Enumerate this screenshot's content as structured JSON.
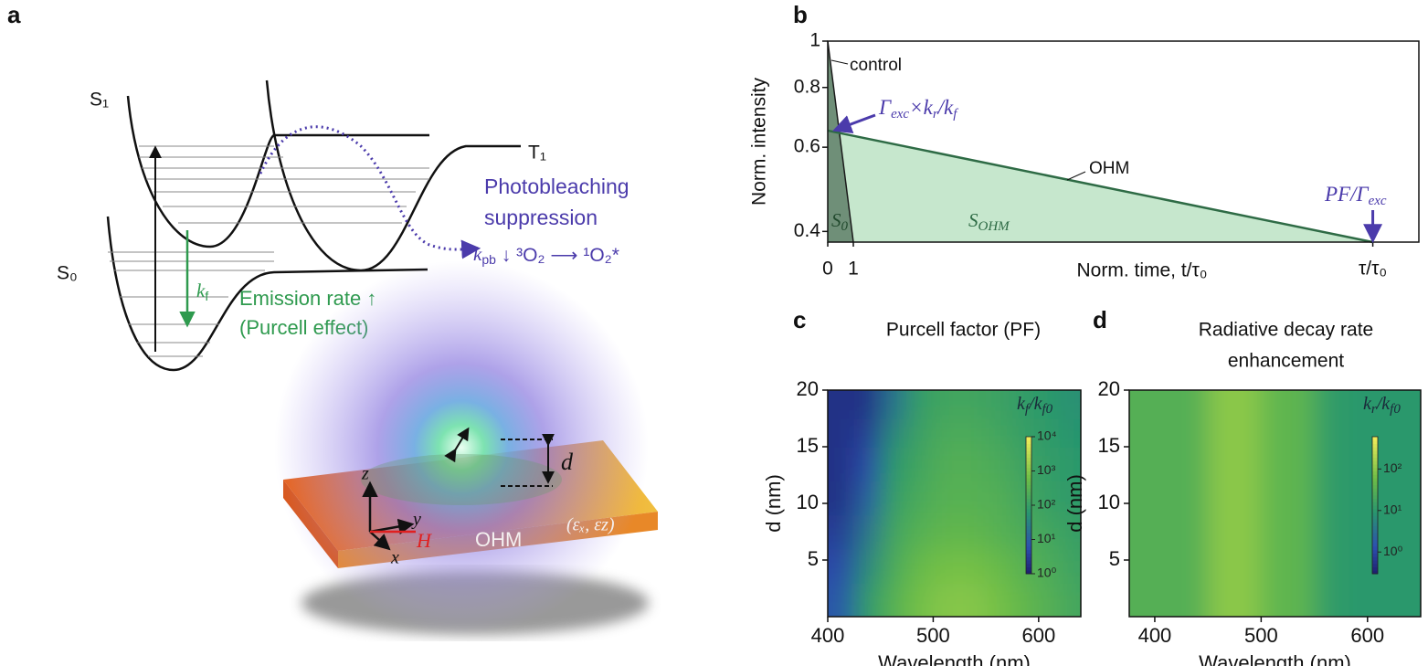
{
  "diagram": {
    "panel_label": "a",
    "s1": "S₁",
    "t1": "T₁",
    "s0": "S₀",
    "bleach_line1": "Photobleaching",
    "bleach_line2": "suppression",
    "kpb_parts": [
      "k",
      "pb",
      " ↓  ³O₂ ⟶ ¹O₂*"
    ],
    "kf_parts": [
      "k",
      "f"
    ],
    "emission_line1": "Emission rate ↑",
    "emission_line2": "(Purcell effect)",
    "d": "d",
    "z": "z",
    "y": "y",
    "x": "x",
    "h": "H",
    "ohm": "OHM",
    "eps": "(εₓ, εz)"
  },
  "chart_data": [
    {
      "type": "line",
      "panel_label": "b",
      "ylabel": "Norm. intensity",
      "xlabel": "Norm. time, t/τ₀",
      "log_y": true,
      "xlim": [
        0,
        23.1
      ],
      "xticks": [
        0,
        1,
        {
          "value": 21.3,
          "label": "τ/τ₀"
        }
      ],
      "ylim": [
        0.38,
        1
      ],
      "yticks": [
        0.4,
        0.6,
        0.8,
        1
      ],
      "series": [
        {
          "name": "control",
          "color": "#1a1a1a",
          "fill": "#6f8f78",
          "x": [
            0,
            1
          ],
          "values": [
            1,
            0.38
          ],
          "area_label": [
            "S",
            "0"
          ]
        },
        {
          "name": "OHM",
          "color": "#2e6b45",
          "fill": "#c6e7cd",
          "x": [
            0,
            21.3
          ],
          "values": [
            0.65,
            0.38
          ],
          "area_label": [
            "S",
            "OHM"
          ]
        }
      ],
      "annotations": [
        {
          "parts": [
            "Γ",
            "exc",
            "×k",
            "r",
            "/k",
            "f"
          ]
        },
        {
          "parts": [
            "PF/Γ",
            "exc"
          ]
        }
      ]
    },
    {
      "type": "heatmap",
      "panel_label": "c",
      "title": "Purcell factor (PF)",
      "xlabel": "Wavelength (nm)",
      "ylabel": "d (nm)",
      "xlim": [
        400,
        640
      ],
      "xticks": [
        400,
        500,
        600
      ],
      "ylim": [
        0,
        20
      ],
      "yticks": [
        5,
        10,
        15,
        20
      ],
      "colorbar_label": [
        "k",
        "f",
        "/k",
        "f0"
      ],
      "clim": [
        1,
        10000
      ],
      "cticks": [
        {
          "value": 1,
          "label": "10⁰"
        },
        {
          "value": 10,
          "label": "10¹"
        },
        {
          "value": 100,
          "label": "10²"
        },
        {
          "value": 1000,
          "label": "10³"
        },
        {
          "value": 10000,
          "label": "10⁴"
        }
      ],
      "xbins": [
        400,
        425,
        450,
        475,
        500,
        525,
        550,
        575,
        600,
        625,
        640
      ],
      "ybins": [
        0,
        3,
        6,
        9,
        12,
        15,
        17.5,
        20
      ],
      "z": [
        [
          8,
          80,
          300,
          700,
          1000,
          1000,
          700,
          400,
          250,
          150
        ],
        [
          5,
          40,
          200,
          500,
          700,
          700,
          500,
          300,
          200,
          120
        ],
        [
          3,
          20,
          150,
          300,
          400,
          400,
          300,
          200,
          150,
          100
        ],
        [
          2,
          10,
          100,
          200,
          300,
          300,
          250,
          150,
          100,
          80
        ],
        [
          2,
          5,
          70,
          150,
          250,
          250,
          200,
          120,
          90,
          70
        ],
        [
          2,
          3,
          40,
          120,
          200,
          200,
          150,
          100,
          80,
          60
        ],
        [
          2,
          2,
          20,
          100,
          150,
          150,
          120,
          90,
          70,
          50
        ]
      ]
    },
    {
      "type": "heatmap",
      "panel_label": "d",
      "title": [
        "Radiative decay rate",
        "enhancement"
      ],
      "xlabel": "Wavelength (nm)",
      "ylabel": "d (nm)",
      "xlim": [
        376,
        650
      ],
      "xticks": [
        400,
        500,
        600
      ],
      "ylim": [
        0,
        20
      ],
      "yticks": [
        5,
        10,
        15,
        20
      ],
      "colorbar_label": [
        "k",
        "r",
        "/k",
        "f0"
      ],
      "clim": [
        0.3,
        600
      ],
      "cticks": [
        {
          "value": 1,
          "label": "10⁰"
        },
        {
          "value": 10,
          "label": "10¹"
        },
        {
          "value": 100,
          "label": "10²"
        }
      ],
      "xbins": [
        376,
        400,
        425,
        450,
        475,
        500,
        525,
        550,
        575,
        600,
        625,
        650
      ],
      "ybins": [
        0,
        3,
        6,
        9,
        12,
        15,
        17.5,
        20
      ],
      "z": [
        [
          30,
          30,
          30,
          100,
          100,
          40,
          40,
          12,
          10,
          10,
          10
        ],
        [
          30,
          30,
          30,
          100,
          100,
          40,
          40,
          12,
          10,
          10,
          10
        ],
        [
          30,
          30,
          30,
          100,
          100,
          40,
          40,
          12,
          10,
          10,
          10
        ],
        [
          30,
          30,
          30,
          100,
          100,
          40,
          40,
          12,
          10,
          10,
          10
        ],
        [
          30,
          30,
          30,
          100,
          100,
          40,
          40,
          12,
          10,
          10,
          10
        ],
        [
          30,
          30,
          30,
          100,
          100,
          40,
          40,
          12,
          10,
          10,
          10
        ],
        [
          30,
          30,
          30,
          100,
          100,
          40,
          40,
          12,
          10,
          10,
          10
        ]
      ]
    }
  ]
}
